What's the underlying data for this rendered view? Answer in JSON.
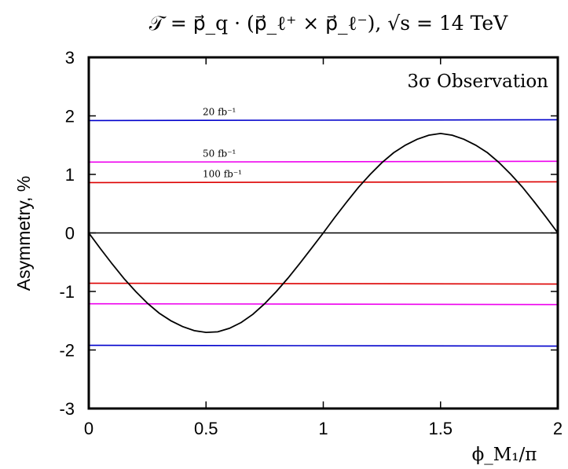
{
  "chart_data": {
    "type": "line",
    "title": "𝒯 = p⃗_q · (p⃗_ℓ⁺ × p⃗_ℓ⁻),  √s = 14 TeV",
    "xlabel": "ϕ_M₁/π",
    "ylabel": "Asymmetry, %",
    "xlim": [
      0,
      2
    ],
    "ylim": [
      -3,
      3
    ],
    "xticks": [
      "0",
      "0.5",
      "1",
      "1.5",
      "2"
    ],
    "yticks": [
      "3",
      "2",
      "1",
      "0",
      "-1",
      "-2",
      "-3"
    ],
    "annotation": "3σ Observation",
    "grid": false,
    "thresholds": [
      {
        "label": "20 fb⁻¹",
        "value": 1.92,
        "color": "#0000cc"
      },
      {
        "label": "50 fb⁻¹",
        "value": 1.21,
        "color": "#ee00ee"
      },
      {
        "label": "100 fb⁻¹",
        "value": 0.86,
        "color": "#dd0000"
      },
      {
        "label": "",
        "value": -0.86,
        "color": "#dd0000"
      },
      {
        "label": "",
        "value": -1.21,
        "color": "#ee00ee"
      },
      {
        "label": "",
        "value": -1.92,
        "color": "#0000cc"
      }
    ],
    "zero_line": {
      "value": 0,
      "color": "#000000"
    },
    "series": [
      {
        "color": "#000000",
        "x": [
          0,
          0.05,
          0.1,
          0.15,
          0.2,
          0.25,
          0.3,
          0.35,
          0.4,
          0.45,
          0.5,
          0.55,
          0.6,
          0.65,
          0.7,
          0.75,
          0.8,
          0.85,
          0.9,
          0.95,
          1.0,
          1.05,
          1.1,
          1.15,
          1.2,
          1.25,
          1.3,
          1.35,
          1.4,
          1.45,
          1.5,
          1.55,
          1.6,
          1.65,
          1.7,
          1.75,
          1.8,
          1.85,
          1.9,
          1.95,
          2.0
        ],
        "y": [
          0,
          -0.27,
          -0.53,
          -0.78,
          -1.0,
          -1.2,
          -1.37,
          -1.5,
          -1.6,
          -1.67,
          -1.7,
          -1.69,
          -1.63,
          -1.53,
          -1.39,
          -1.21,
          -1.0,
          -0.77,
          -0.52,
          -0.26,
          0,
          0.27,
          0.53,
          0.78,
          1.0,
          1.2,
          1.37,
          1.5,
          1.6,
          1.67,
          1.7,
          1.67,
          1.6,
          1.5,
          1.37,
          1.2,
          1.0,
          0.78,
          0.53,
          0.27,
          0
        ]
      }
    ]
  }
}
